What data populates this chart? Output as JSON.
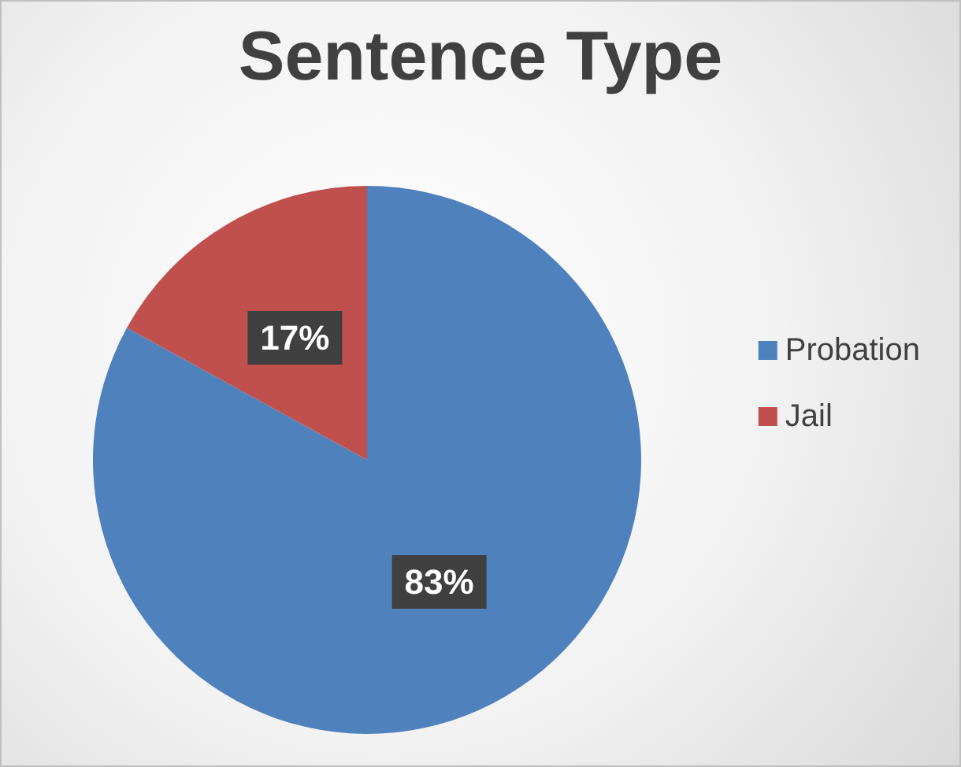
{
  "chart_data": {
    "type": "pie",
    "title": "Sentence Type",
    "categories": [
      "Probation",
      "Jail"
    ],
    "values": [
      83,
      17
    ],
    "colors": [
      "#4f81bd",
      "#c0504d"
    ],
    "value_labels": [
      "83%",
      "17%"
    ],
    "legend": "right"
  }
}
